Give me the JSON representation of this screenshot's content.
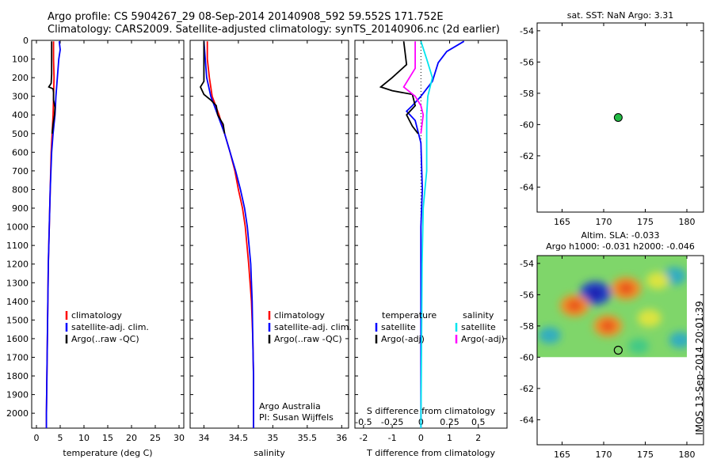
{
  "header": {
    "title_line1": "Argo profile: CS 5904267_29 08-Sep-2014 20140908_592 59.552S 171.752E",
    "title_line2": "Climatology: CARS2009. Satellite-adjusted climatology: synTS_20140906.nc (2d earlier)"
  },
  "colors": {
    "climatology": "#ff0000",
    "satellite": "#0000ff",
    "argo": "#000000",
    "sal_satellite": "#00e5ee",
    "sal_argo": "#ff00ff",
    "marker": "#22bb44"
  },
  "chart_data": [
    {
      "type": "line",
      "id": "temperature",
      "xlabel": "temperature (deg C)",
      "xlim": [
        -1,
        31
      ],
      "xticks": [
        0,
        5,
        10,
        15,
        20,
        25,
        30
      ],
      "ylim": [
        2080,
        0
      ],
      "yticks": [
        0,
        100,
        200,
        300,
        400,
        500,
        600,
        700,
        800,
        900,
        1000,
        1100,
        1200,
        1300,
        1400,
        1500,
        1600,
        1700,
        1800,
        1900,
        2000
      ],
      "legend": [
        "climatology",
        "satellite-adj. clim.",
        "Argo(..raw -QC)"
      ],
      "series": [
        {
          "name": "climatology",
          "color": "#ff0000",
          "points": [
            [
              3.6,
              5
            ],
            [
              3.6,
              100
            ],
            [
              3.7,
              200
            ],
            [
              3.6,
              300
            ],
            [
              3.5,
              400
            ],
            [
              3.3,
              500
            ],
            [
              3.1,
              600
            ],
            [
              2.9,
              800
            ],
            [
              2.7,
              1000
            ],
            [
              2.5,
              1200
            ],
            [
              2.4,
              1400
            ],
            [
              2.3,
              1600
            ],
            [
              2.2,
              1800
            ],
            [
              2.1,
              2000
            ],
            [
              2.1,
              2080
            ]
          ]
        },
        {
          "name": "satellite-adj. clim.",
          "color": "#0000ff",
          "points": [
            [
              4.8,
              5
            ],
            [
              5.0,
              50
            ],
            [
              4.7,
              100
            ],
            [
              4.4,
              200
            ],
            [
              4.1,
              300
            ],
            [
              3.9,
              400
            ],
            [
              3.5,
              500
            ],
            [
              3.2,
              600
            ],
            [
              2.9,
              800
            ],
            [
              2.7,
              1000
            ],
            [
              2.5,
              1200
            ],
            [
              2.4,
              1400
            ],
            [
              2.3,
              1600
            ],
            [
              2.2,
              1800
            ],
            [
              2.1,
              2000
            ],
            [
              2.1,
              2080
            ]
          ]
        },
        {
          "name": "Argo(..raw -QC)",
          "color": "#000000",
          "points": [
            [
              3.2,
              5
            ],
            [
              3.2,
              180
            ],
            [
              3.1,
              230
            ],
            [
              2.6,
              250
            ],
            [
              3.5,
              260
            ],
            [
              3.6,
              280
            ],
            [
              3.6,
              320
            ],
            [
              3.9,
              360
            ],
            [
              3.8,
              400
            ],
            [
              3.5,
              450
            ],
            [
              3.3,
              500
            ]
          ]
        }
      ]
    },
    {
      "type": "line",
      "id": "salinity",
      "xlabel": "salinity",
      "xlim": [
        33.8,
        36.1
      ],
      "xticks": [
        34,
        34.5,
        35,
        35.5,
        36
      ],
      "xtick_labels": [
        "34",
        "34.5",
        "35",
        "35.5",
        "36"
      ],
      "ylim": [
        2080,
        0
      ],
      "legend": [
        "climatology",
        "satellite-adj. clim.",
        "Argo(..raw -QC)"
      ],
      "annotations": [
        "Argo Australia",
        "PI: Susan Wijffels"
      ],
      "series": [
        {
          "name": "climatology",
          "color": "#ff0000",
          "points": [
            [
              34.05,
              5
            ],
            [
              34.05,
              100
            ],
            [
              34.08,
              200
            ],
            [
              34.12,
              300
            ],
            [
              34.22,
              400
            ],
            [
              34.3,
              500
            ],
            [
              34.38,
              600
            ],
            [
              34.45,
              700
            ],
            [
              34.5,
              800
            ],
            [
              34.56,
              900
            ],
            [
              34.6,
              1000
            ],
            [
              34.65,
              1200
            ],
            [
              34.69,
              1400
            ],
            [
              34.71,
              1600
            ],
            [
              34.72,
              1800
            ],
            [
              34.72,
              2000
            ],
            [
              34.72,
              2080
            ]
          ]
        },
        {
          "name": "satellite-adj. clim.",
          "color": "#0000ff",
          "points": [
            [
              34.0,
              5
            ],
            [
              34.02,
              100
            ],
            [
              34.04,
              200
            ],
            [
              34.1,
              300
            ],
            [
              34.2,
              400
            ],
            [
              34.3,
              500
            ],
            [
              34.38,
              600
            ],
            [
              34.46,
              700
            ],
            [
              34.53,
              800
            ],
            [
              34.59,
              900
            ],
            [
              34.63,
              1000
            ],
            [
              34.68,
              1200
            ],
            [
              34.7,
              1400
            ],
            [
              34.71,
              1600
            ],
            [
              34.72,
              1800
            ],
            [
              34.72,
              2000
            ],
            [
              34.72,
              2080
            ]
          ]
        },
        {
          "name": "Argo(..raw -QC)",
          "color": "#000000",
          "points": [
            [
              34.0,
              5
            ],
            [
              34.0,
              150
            ],
            [
              34.0,
              220
            ],
            [
              33.95,
              250
            ],
            [
              34.0,
              290
            ],
            [
              34.1,
              320
            ],
            [
              34.18,
              350
            ],
            [
              34.2,
              400
            ],
            [
              34.28,
              450
            ],
            [
              34.3,
              500
            ]
          ]
        }
      ]
    },
    {
      "type": "line",
      "id": "difference",
      "xlabel": "T difference from climatology",
      "x2label": "S difference from climatology",
      "xlim": [
        -2.3,
        3.0
      ],
      "xticks": [
        -2,
        -1,
        0,
        1,
        2
      ],
      "s_ticks": [
        -0.5,
        -0.25,
        0,
        0.25,
        0.5
      ],
      "s_tick_labels": [
        "-0.5",
        "-0.25",
        "0",
        "0.25",
        "0.5"
      ],
      "ylim": [
        2080,
        0
      ],
      "legend": {
        "temperature": [
          "satellite",
          "Argo(-adj)"
        ],
        "salinity": [
          "satellite",
          "Argo(-adj)"
        ]
      },
      "legend_headers": [
        "temperature",
        "salinity"
      ],
      "series": [
        {
          "name": "temperature satellite",
          "color": "#0000ff",
          "points": [
            [
              1.5,
              5
            ],
            [
              0.9,
              60
            ],
            [
              0.6,
              120
            ],
            [
              0.4,
              220
            ],
            [
              0.0,
              300
            ],
            [
              -0.3,
              350
            ],
            [
              -0.5,
              380
            ],
            [
              -0.2,
              430
            ],
            [
              0.0,
              550
            ],
            [
              0.05,
              800
            ],
            [
              0.0,
              1000
            ],
            [
              0.0,
              1500
            ],
            [
              0.0,
              2080
            ]
          ]
        },
        {
          "name": "temperature Argo(-adj)",
          "color": "#000000",
          "points": [
            [
              -0.6,
              5
            ],
            [
              -0.5,
              130
            ],
            [
              -1.0,
              200
            ],
            [
              -1.4,
              250
            ],
            [
              -1.0,
              270
            ],
            [
              -0.3,
              290
            ],
            [
              -0.2,
              350
            ],
            [
              -0.5,
              400
            ],
            [
              -0.3,
              460
            ],
            [
              -0.1,
              500
            ]
          ]
        },
        {
          "name": "salinity satellite",
          "color": "#00e5ee",
          "points": [
            [
              0.0,
              5
            ],
            [
              0.05,
              100
            ],
            [
              0.1,
              200
            ],
            [
              0.06,
              300
            ],
            [
              0.05,
              400
            ],
            [
              0.05,
              500
            ],
            [
              0.05,
              700
            ],
            [
              0.02,
              900
            ],
            [
              0.01,
              1200
            ],
            [
              0.0,
              2080
            ]
          ]
        },
        {
          "name": "salinity Argo(-adj)",
          "color": "#ff00ff",
          "points": [
            [
              -0.05,
              5
            ],
            [
              -0.05,
              150
            ],
            [
              -0.15,
              250
            ],
            [
              -0.05,
              300
            ],
            [
              0.0,
              350
            ],
            [
              0.02,
              400
            ],
            [
              0.0,
              500
            ]
          ]
        }
      ]
    },
    {
      "type": "scatter",
      "id": "sst-map",
      "title": "sat. SST: NaN Argo: 3.31",
      "xlim": [
        162,
        182
      ],
      "ylim": [
        -65.6,
        -53.5
      ],
      "xticks": [
        165,
        170,
        175,
        180
      ],
      "yticks": [
        -54,
        -56,
        -58,
        -60,
        -62,
        -64
      ],
      "points": [
        [
          171.75,
          -59.55
        ]
      ]
    },
    {
      "type": "heatmap",
      "id": "sla-map",
      "title_line1": "Altim. SLA: -0.033",
      "title_line2": "Argo h1000: -0.031 h2000: -0.046",
      "xlim": [
        162,
        182
      ],
      "ylim": [
        -65.6,
        -53.5
      ],
      "xticks": [
        165,
        170,
        175,
        180
      ],
      "yticks": [
        -54,
        -56,
        -58,
        -60,
        -62,
        -64
      ],
      "heat_extent": {
        "lon": [
          162,
          180
        ],
        "lat": [
          -60,
          -53.5
        ]
      },
      "blobs": [
        {
          "lon": 169,
          "lat": -55.9,
          "value": -1.0
        },
        {
          "lon": 166.5,
          "lat": -56.7,
          "value": 0.85
        },
        {
          "lon": 172.7,
          "lat": -55.6,
          "value": 0.9
        },
        {
          "lon": 170.5,
          "lat": -58.0,
          "value": 0.8
        },
        {
          "lon": 175.5,
          "lat": -57.5,
          "value": 0.5
        },
        {
          "lon": 163.5,
          "lat": -58.6,
          "value": -0.4
        },
        {
          "lon": 178.5,
          "lat": -54.8,
          "value": -0.5
        },
        {
          "lon": 179.2,
          "lat": -58.9,
          "value": -0.4
        },
        {
          "lon": 174.2,
          "lat": -59.3,
          "value": -0.3
        },
        {
          "lon": 176.5,
          "lat": -55.1,
          "value": 0.45
        }
      ],
      "marker": [
        171.75,
        -59.55
      ]
    }
  ],
  "footer": {
    "vertical_stamp": "IMOS 13-Sep-2014 20:01:39"
  }
}
